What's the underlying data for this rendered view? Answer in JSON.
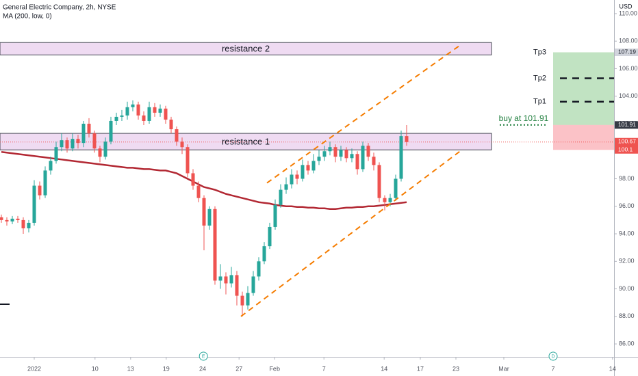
{
  "chart_data": {
    "type": "candlestick",
    "title": "General Electric Company, 2h, NYSE",
    "indicator_label": "MA (200, low, 0)",
    "currency": "USD",
    "x": [
      0,
      1,
      2,
      3,
      4,
      5,
      6,
      7,
      8,
      9,
      10,
      11,
      12,
      13,
      14,
      15,
      16,
      17,
      18,
      19,
      20,
      21,
      22,
      23,
      24,
      25,
      26,
      27,
      28,
      29,
      30,
      31,
      32,
      33,
      34,
      35,
      36,
      37,
      38,
      39,
      40,
      41,
      42,
      43,
      44,
      45,
      46,
      47,
      48,
      49,
      50,
      51,
      52,
      53,
      54,
      55,
      56,
      57,
      58,
      59,
      60,
      61,
      62,
      63,
      64,
      65,
      66,
      67,
      68,
      69,
      70,
      71,
      72,
      73,
      74
    ],
    "open": [
      95.2,
      95.0,
      94.9,
      95.1,
      95.0,
      94.4,
      94.8,
      97.5,
      96.8,
      98.6,
      99.3,
      100.3,
      100.8,
      100.2,
      100.9,
      100.6,
      102.0,
      101.3,
      100.2,
      99.6,
      100.7,
      102.2,
      102.5,
      102.6,
      103.2,
      103.4,
      102.6,
      102.2,
      103.2,
      102.8,
      103.1,
      102.3,
      101.6,
      100.7,
      100.3,
      98.4,
      97.5,
      96.6,
      94.6,
      95.8,
      90.6,
      90.9,
      90.4,
      91.0,
      89.5,
      88.8,
      89.7,
      90.9,
      92.0,
      93.1,
      94.5,
      96.1,
      97.2,
      97.6,
      98.3,
      98.0,
      99.0,
      98.6,
      99.3,
      99.6,
      100.0,
      100.3,
      99.6,
      100.1,
      99.5,
      99.8,
      98.7,
      100.4,
      99.6,
      99.0,
      96.6,
      96.3,
      96.6,
      98.0,
      101.1
    ],
    "high": [
      95.4,
      95.2,
      95.3,
      95.3,
      95.2,
      95.0,
      97.9,
      97.8,
      98.9,
      99.6,
      100.7,
      101.3,
      101.0,
      101.3,
      101.2,
      102.2,
      102.4,
      101.5,
      100.4,
      101.0,
      102.5,
      102.8,
      103.0,
      103.6,
      103.7,
      103.6,
      102.9,
      103.6,
      103.5,
      103.4,
      103.3,
      102.5,
      101.8,
      101.0,
      100.5,
      98.7,
      97.8,
      96.8,
      96.0,
      96.0,
      91.8,
      91.2,
      91.6,
      91.3,
      89.8,
      90.2,
      91.3,
      92.3,
      93.4,
      94.8,
      96.5,
      97.6,
      98.1,
      98.7,
      98.6,
      99.4,
      99.3,
      99.8,
      100.1,
      100.4,
      100.7,
      100.5,
      100.4,
      100.3,
      100.2,
      100.0,
      100.7,
      100.6,
      99.9,
      99.2,
      96.8,
      96.9,
      98.3,
      101.5,
      101.9
    ],
    "low": [
      94.8,
      94.6,
      94.7,
      94.8,
      94.0,
      94.1,
      94.6,
      96.5,
      96.6,
      98.3,
      99.1,
      100.0,
      99.9,
      100.0,
      100.2,
      100.3,
      101.0,
      99.9,
      99.2,
      99.4,
      100.5,
      101.9,
      102.2,
      102.3,
      102.9,
      102.3,
      101.9,
      102.0,
      102.5,
      102.5,
      102.0,
      101.3,
      100.4,
      99.8,
      98.1,
      97.2,
      96.3,
      92.8,
      94.3,
      90.3,
      90.0,
      89.6,
      90.1,
      88.8,
      88.0,
      88.5,
      89.5,
      90.6,
      91.8,
      92.9,
      94.3,
      95.9,
      96.9,
      97.3,
      97.6,
      97.8,
      98.3,
      98.4,
      99.0,
      99.3,
      99.7,
      99.2,
      99.3,
      99.2,
      99.2,
      98.3,
      98.5,
      99.3,
      98.6,
      96.3,
      95.7,
      96.0,
      96.4,
      97.8,
      100.4
    ],
    "close": [
      95.0,
      94.9,
      95.1,
      95.0,
      94.4,
      94.8,
      97.5,
      96.8,
      98.6,
      99.3,
      100.3,
      100.8,
      100.2,
      100.9,
      100.6,
      102.0,
      101.3,
      100.2,
      99.6,
      100.7,
      102.2,
      102.5,
      102.6,
      103.2,
      103.4,
      102.6,
      102.2,
      103.2,
      102.8,
      103.1,
      102.3,
      101.6,
      100.7,
      100.3,
      98.4,
      97.5,
      96.6,
      94.6,
      95.8,
      90.6,
      90.9,
      90.4,
      91.0,
      89.5,
      88.8,
      89.7,
      90.9,
      92.0,
      93.1,
      94.5,
      96.1,
      97.2,
      97.6,
      98.3,
      98.0,
      99.0,
      98.6,
      99.3,
      99.6,
      100.0,
      100.3,
      99.6,
      100.1,
      99.5,
      99.8,
      98.7,
      100.4,
      99.6,
      99.0,
      96.6,
      96.3,
      96.6,
      98.0,
      101.1,
      100.67
    ],
    "up_color": "#26a69a",
    "down_color": "#ef5350",
    "ma": {
      "color": "#b22833",
      "values": [
        99.95,
        99.9,
        99.85,
        99.8,
        99.75,
        99.7,
        99.65,
        99.6,
        99.55,
        99.5,
        99.45,
        99.4,
        99.35,
        99.3,
        99.25,
        99.2,
        99.15,
        99.1,
        99.05,
        99.0,
        98.95,
        98.9,
        98.85,
        98.8,
        98.8,
        98.75,
        98.7,
        98.7,
        98.65,
        98.6,
        98.6,
        98.5,
        98.4,
        98.2,
        98.0,
        97.8,
        97.6,
        97.4,
        97.3,
        97.2,
        97.05,
        96.9,
        96.8,
        96.7,
        96.6,
        96.5,
        96.4,
        96.3,
        96.25,
        96.2,
        96.1,
        96.05,
        96.0,
        96.0,
        95.95,
        95.95,
        95.9,
        95.9,
        95.85,
        95.85,
        95.8,
        95.8,
        95.85,
        95.9,
        95.9,
        95.95,
        95.95,
        96.0,
        96.0,
        96.05,
        96.1,
        96.15,
        96.2,
        96.25,
        96.3
      ]
    },
    "xlim": [
      -0.25,
      111.875
    ],
    "ylim": [
      85.06,
      110.99
    ],
    "xticks": [
      {
        "value": 6,
        "label": "2022"
      },
      {
        "value": 17.1,
        "label": "10"
      },
      {
        "value": 23.6,
        "label": "13"
      },
      {
        "value": 30.1,
        "label": "19"
      },
      {
        "value": 36.75,
        "label": "24"
      },
      {
        "value": 43.4,
        "label": "27"
      },
      {
        "value": 49.9,
        "label": "Feb"
      },
      {
        "value": 58.9,
        "label": "7"
      },
      {
        "value": 69.9,
        "label": "14"
      },
      {
        "value": 76.5,
        "label": "17"
      },
      {
        "value": 83,
        "label": "23"
      },
      {
        "value": 91.75,
        "label": "Mar"
      },
      {
        "value": 100.75,
        "label": "7"
      },
      {
        "value": 111.6,
        "label": "14"
      }
    ],
    "yticks": [
      {
        "value": 86,
        "label": "86.00"
      },
      {
        "value": 88,
        "label": "88.00"
      },
      {
        "value": 90,
        "label": "90.00"
      },
      {
        "value": 92,
        "label": "92.00"
      },
      {
        "value": 94,
        "label": "94.00"
      },
      {
        "value": 96,
        "label": "96.00"
      },
      {
        "value": 98,
        "label": "98.00"
      },
      {
        "value": 100,
        "label": "100.00"
      },
      {
        "value": 102,
        "label": "102.00"
      },
      {
        "value": 104,
        "label": "104.00"
      },
      {
        "value": 106,
        "label": "106.00"
      },
      {
        "value": 108,
        "label": "108.00"
      },
      {
        "value": 110,
        "label": "110.00"
      }
    ],
    "grid": false,
    "zones": [
      {
        "label": "resistance 2",
        "x": [
          -0.25,
          89.5
        ],
        "low": 107.0,
        "high": 107.9
      },
      {
        "label": "resistance 1",
        "x": [
          -0.25,
          89.5
        ],
        "low": 100.1,
        "high": 101.3
      }
    ],
    "trendlines": [
      {
        "color": "#f57c00",
        "x": [
          48.5,
          83.75
        ],
        "y": [
          97.7,
          107.7
        ]
      },
      {
        "color": "#f57c00",
        "x": [
          43.75,
          84.25
        ],
        "y": [
          88.0,
          100.15
        ]
      }
    ],
    "position": {
      "x": [
        100.75,
        111.875
      ],
      "entry": 101.91,
      "stop": 100.1,
      "target": 107.19,
      "entry_label": "buy at 101.91",
      "targets": [
        {
          "label": "Tp1",
          "value": 103.6,
          "line": true
        },
        {
          "label": "Tp2",
          "value": 105.3,
          "line": true
        },
        {
          "label": "Tp3",
          "value": 107.19,
          "line": false
        }
      ]
    },
    "price_tags": [
      {
        "value": 107.19,
        "color": "#d1d4dc",
        "text_color": "#131722"
      },
      {
        "value": 101.91,
        "color": "#363a45",
        "text_color": "#ffffff"
      },
      {
        "value": 100.67,
        "color": "#ef5350",
        "text_color": "#ffffff",
        "countdown": "33:33"
      },
      {
        "value": 100.1,
        "color": "#ef5350",
        "text_color": "#ffffff"
      }
    ],
    "last_price": 100.67,
    "events": [
      {
        "label": "E",
        "x": 36.9
      },
      {
        "label": "D",
        "x": 100.75
      }
    ]
  }
}
